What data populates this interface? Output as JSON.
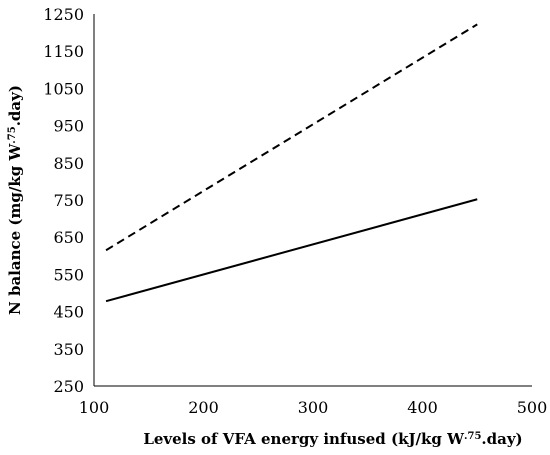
{
  "chart_data": {
    "type": "line",
    "title": "",
    "xlabel": {
      "main": "Levels of VFA energy infused (kJ/kg W",
      "sup": ".75",
      "end": ".day)"
    },
    "ylabel": {
      "main": "N balance (mg/kg W",
      "sup": ".75",
      "end": ".day)"
    },
    "xlim": [
      100,
      500
    ],
    "ylim": [
      250,
      1250
    ],
    "xticks": [
      "100",
      "200",
      "300",
      "400",
      "500"
    ],
    "yticks": [
      "250",
      "350",
      "450",
      "550",
      "650",
      "750",
      "850",
      "950",
      "1050",
      "1150",
      "1250"
    ],
    "grid": false,
    "legend": "none",
    "series": [
      {
        "style": "dashed",
        "color": "#000000",
        "x": [
          111,
          450
        ],
        "y": [
          615,
          1222
        ]
      },
      {
        "style": "solid",
        "color": "#000000",
        "x": [
          111,
          450
        ],
        "y": [
          478,
          752
        ]
      }
    ]
  }
}
